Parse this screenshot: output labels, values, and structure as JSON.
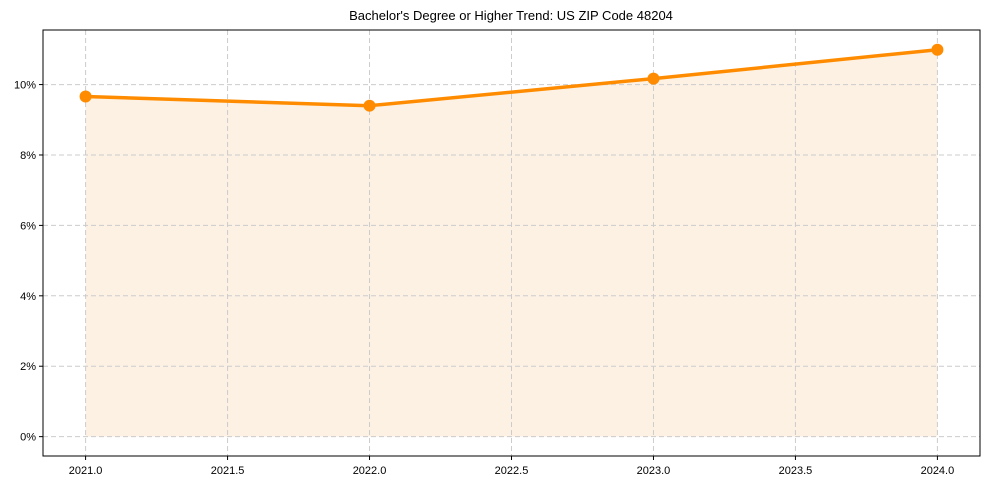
{
  "chart_data": {
    "type": "line",
    "title": "Bachelor's Degree or Higher Trend: US ZIP Code 48204",
    "xlabel": "",
    "ylabel": "",
    "x": [
      2021,
      2022,
      2023,
      2024
    ],
    "series": [
      {
        "name": "Bachelor's Degree or Higher",
        "values": [
          9.66,
          9.4,
          10.17,
          10.99
        ],
        "unit": "%",
        "color": "#ff8c00",
        "fill": true,
        "fill_color": "#fdf1e4",
        "marker": "circle"
      }
    ],
    "xlim": [
      2020.85,
      2024.15
    ],
    "ylim": [
      -0.55,
      11.55
    ],
    "xticks": [
      2021.0,
      2021.5,
      2022.0,
      2022.5,
      2023.0,
      2023.5,
      2024.0
    ],
    "xtick_labels": [
      "2021.0",
      "2021.5",
      "2022.0",
      "2022.5",
      "2023.0",
      "2023.5",
      "2024.0"
    ],
    "yticks": [
      0,
      2,
      4,
      6,
      8,
      10
    ],
    "ytick_labels": [
      "0%",
      "2%",
      "4%",
      "6%",
      "8%",
      "10%"
    ],
    "grid": true,
    "grid_style": "dashed",
    "legend": null
  }
}
